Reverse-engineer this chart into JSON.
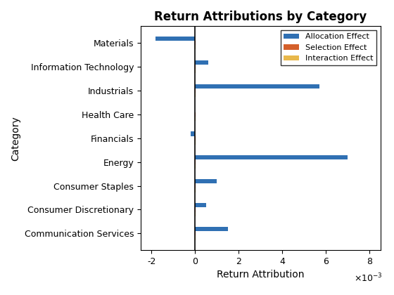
{
  "categories": [
    "Communication Services",
    "Consumer Discretionary",
    "Consumer Staples",
    "Energy",
    "Financials",
    "Health Care",
    "Industrials",
    "Information Technology",
    "Materials"
  ],
  "allocation_effect": [
    0.0015,
    0.0005,
    0.001,
    0.007,
    -0.0002,
    0.0,
    0.0057,
    0.0006,
    -0.0018
  ],
  "selection_effect": [
    1e-05,
    1e-05,
    1e-05,
    1e-05,
    1e-05,
    1e-05,
    1e-05,
    1e-05,
    1e-05
  ],
  "interaction_effect": [
    1e-05,
    1e-05,
    1e-05,
    1e-05,
    1e-05,
    1e-05,
    1e-05,
    1e-05,
    1e-05
  ],
  "allocation_color": "#3070b3",
  "selection_color": "#d45f2a",
  "interaction_color": "#e8b84b",
  "title": "Return Attributions by Category",
  "xlabel": "Return Attribution",
  "ylabel": "Category",
  "xlim": [
    -0.0025,
    0.0085
  ],
  "xticks": [
    -0.002,
    0.0,
    0.002,
    0.004,
    0.006,
    0.008
  ],
  "xticklabels": [
    "-2",
    "0",
    "2",
    "4",
    "6",
    "8"
  ],
  "bar_height": 0.55
}
